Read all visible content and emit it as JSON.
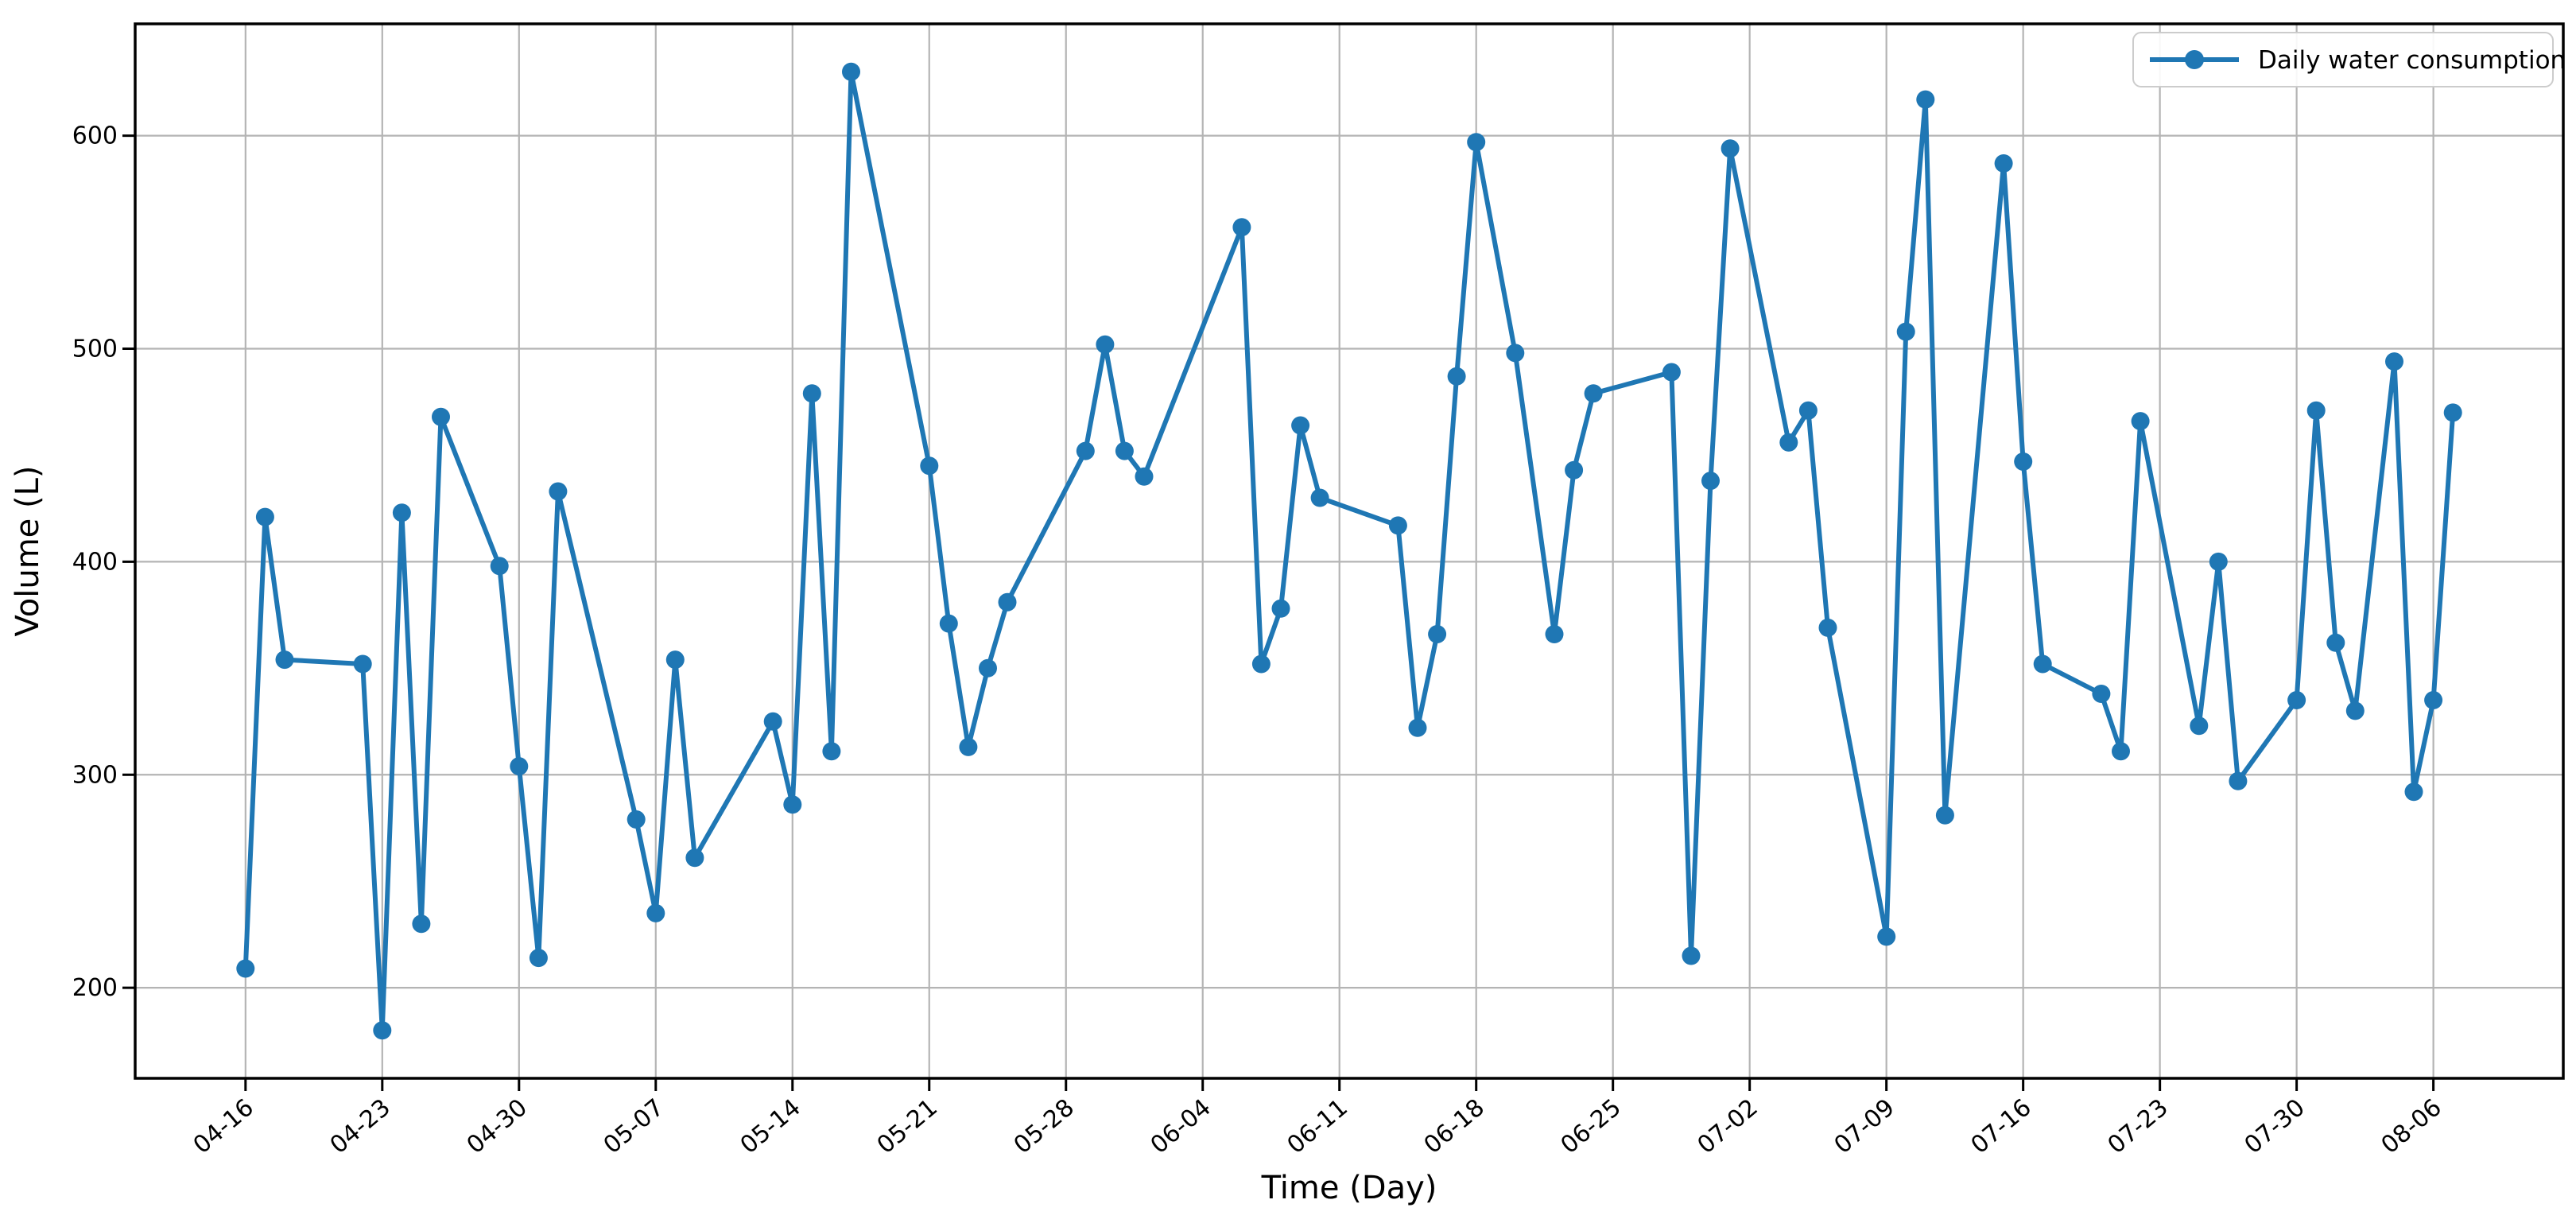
{
  "figure": {
    "background_color": "#ffffff",
    "spine_color": "#000000",
    "tick_color": "#000000"
  },
  "chart_data": {
    "type": "line",
    "title": "",
    "xlabel": "Time (Day)",
    "ylabel": "Volume (L)",
    "legend": {
      "label": "Daily water consumption",
      "position": "upper right",
      "border_color": "#cccccc",
      "background_color": "#ffffff"
    },
    "line_color": "#1f77b4",
    "marker": "circle",
    "grid": true,
    "grid_color": "#b4b4b4",
    "ylim": [
      157.5,
      652.5
    ],
    "xlim_days": [
      -5.65,
      118.65
    ],
    "y_ticks": [
      200,
      300,
      400,
      500,
      600
    ],
    "x_tick_labels": [
      "04-16",
      "04-23",
      "04-30",
      "05-07",
      "05-14",
      "05-21",
      "05-28",
      "06-04",
      "06-11",
      "06-18",
      "06-25",
      "07-02",
      "07-09",
      "07-16",
      "07-23",
      "07-30",
      "08-06"
    ],
    "points": [
      {
        "date": "04-16",
        "value": 209
      },
      {
        "date": "04-17",
        "value": 421
      },
      {
        "date": "04-18",
        "value": 354
      },
      {
        "date": "04-22",
        "value": 352
      },
      {
        "date": "04-23",
        "value": 180
      },
      {
        "date": "04-24",
        "value": 423
      },
      {
        "date": "04-25",
        "value": 230
      },
      {
        "date": "04-26",
        "value": 468
      },
      {
        "date": "04-29",
        "value": 398
      },
      {
        "date": "04-30",
        "value": 304
      },
      {
        "date": "05-01",
        "value": 214
      },
      {
        "date": "05-02",
        "value": 433
      },
      {
        "date": "05-06",
        "value": 279
      },
      {
        "date": "05-07",
        "value": 235
      },
      {
        "date": "05-08",
        "value": 354
      },
      {
        "date": "05-09",
        "value": 261
      },
      {
        "date": "05-13",
        "value": 325
      },
      {
        "date": "05-14",
        "value": 286
      },
      {
        "date": "05-15",
        "value": 479
      },
      {
        "date": "05-16",
        "value": 311
      },
      {
        "date": "05-17",
        "value": 630
      },
      {
        "date": "05-21",
        "value": 445
      },
      {
        "date": "05-22",
        "value": 371
      },
      {
        "date": "05-23",
        "value": 313
      },
      {
        "date": "05-24",
        "value": 350
      },
      {
        "date": "05-25",
        "value": 381
      },
      {
        "date": "05-29",
        "value": 452
      },
      {
        "date": "05-30",
        "value": 502
      },
      {
        "date": "05-31",
        "value": 452
      },
      {
        "date": "06-01",
        "value": 440
      },
      {
        "date": "06-06",
        "value": 557
      },
      {
        "date": "06-07",
        "value": 352
      },
      {
        "date": "06-08",
        "value": 378
      },
      {
        "date": "06-09",
        "value": 464
      },
      {
        "date": "06-10",
        "value": 430
      },
      {
        "date": "06-14",
        "value": 417
      },
      {
        "date": "06-15",
        "value": 322
      },
      {
        "date": "06-16",
        "value": 366
      },
      {
        "date": "06-17",
        "value": 487
      },
      {
        "date": "06-18",
        "value": 597
      },
      {
        "date": "06-20",
        "value": 498
      },
      {
        "date": "06-22",
        "value": 366
      },
      {
        "date": "06-23",
        "value": 443
      },
      {
        "date": "06-24",
        "value": 479
      },
      {
        "date": "06-28",
        "value": 489
      },
      {
        "date": "06-29",
        "value": 215
      },
      {
        "date": "06-30",
        "value": 438
      },
      {
        "date": "07-01",
        "value": 594
      },
      {
        "date": "07-04",
        "value": 456
      },
      {
        "date": "07-05",
        "value": 471
      },
      {
        "date": "07-06",
        "value": 369
      },
      {
        "date": "07-09",
        "value": 224
      },
      {
        "date": "07-10",
        "value": 508
      },
      {
        "date": "07-11",
        "value": 617
      },
      {
        "date": "07-12",
        "value": 281
      },
      {
        "date": "07-15",
        "value": 587
      },
      {
        "date": "07-16",
        "value": 447
      },
      {
        "date": "07-17",
        "value": 352
      },
      {
        "date": "07-20",
        "value": 338
      },
      {
        "date": "07-21",
        "value": 311
      },
      {
        "date": "07-22",
        "value": 466
      },
      {
        "date": "07-25",
        "value": 323
      },
      {
        "date": "07-26",
        "value": 400
      },
      {
        "date": "07-27",
        "value": 297
      },
      {
        "date": "07-30",
        "value": 335
      },
      {
        "date": "07-31",
        "value": 471
      },
      {
        "date": "08-01",
        "value": 362
      },
      {
        "date": "08-02",
        "value": 330
      },
      {
        "date": "08-04",
        "value": 494
      },
      {
        "date": "08-05",
        "value": 292
      },
      {
        "date": "08-06",
        "value": 335
      },
      {
        "date": "08-07",
        "value": 470
      }
    ]
  }
}
